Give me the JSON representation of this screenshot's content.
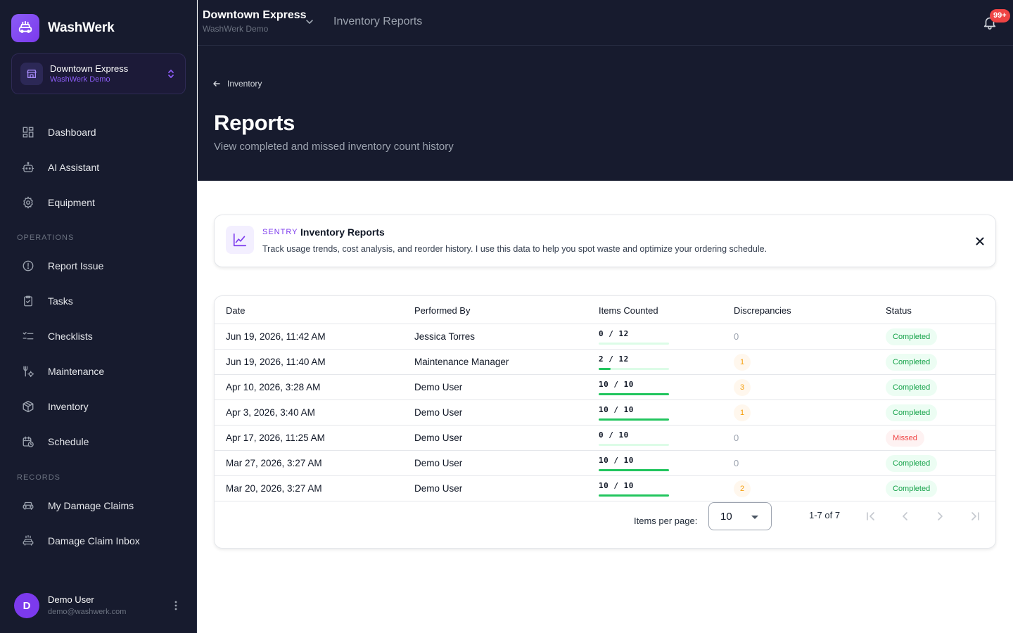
{
  "app": {
    "name": "WashWerk"
  },
  "location": {
    "name": "Downtown Express",
    "org": "WashWerk Demo"
  },
  "sidebar": {
    "main_items": [
      {
        "label": "Dashboard",
        "icon": "dashboard-icon"
      },
      {
        "label": "AI Assistant",
        "icon": "robot-icon"
      },
      {
        "label": "Equipment",
        "icon": "gear-icon"
      }
    ],
    "operations_heading": "OPERATIONS",
    "operations_items": [
      {
        "label": "Report Issue",
        "icon": "alert-circle-icon"
      },
      {
        "label": "Tasks",
        "icon": "clipboard-check-icon"
      },
      {
        "label": "Checklists",
        "icon": "checklist-icon"
      },
      {
        "label": "Maintenance",
        "icon": "wrench-icon"
      },
      {
        "label": "Inventory",
        "icon": "box-icon"
      },
      {
        "label": "Schedule",
        "icon": "calendar-clock-icon"
      }
    ],
    "records_heading": "RECORDS",
    "records_items": [
      {
        "label": "My Damage Claims",
        "icon": "car-icon"
      },
      {
        "label": "Damage Claim Inbox",
        "icon": "car-wash-icon"
      }
    ]
  },
  "user": {
    "initial": "D",
    "name": "Demo User",
    "email": "demo@washwerk.com"
  },
  "header": {
    "section_title": "Inventory Reports",
    "notification_count": "99+"
  },
  "page": {
    "back_label": "Inventory",
    "title": "Reports",
    "subtitle": "View completed and missed inventory count history"
  },
  "sentry": {
    "tag": "SENTRY",
    "title": "Inventory Reports",
    "text": "Track usage trends, cost analysis, and reorder history. I use this data to help you spot waste and optimize your ordering schedule."
  },
  "table": {
    "columns": [
      "Date",
      "Performed By",
      "Items Counted",
      "Discrepancies",
      "Status"
    ],
    "rows": [
      {
        "date": "Jun 19, 2026, 11:42 AM",
        "by": "Jessica Torres",
        "counted": "0 / 12",
        "progress": 0,
        "discrepancies": "0",
        "status": "Completed"
      },
      {
        "date": "Jun 19, 2026, 11:40 AM",
        "by": "Maintenance Manager",
        "counted": "2 / 12",
        "progress": 0.1667,
        "discrepancies": "1",
        "status": "Completed"
      },
      {
        "date": "Apr 10, 2026, 3:28 AM",
        "by": "Demo User",
        "counted": "10 / 10",
        "progress": 1,
        "discrepancies": "3",
        "status": "Completed"
      },
      {
        "date": "Apr 3, 2026, 3:40 AM",
        "by": "Demo User",
        "counted": "10 / 10",
        "progress": 1,
        "discrepancies": "1",
        "status": "Completed"
      },
      {
        "date": "Apr 17, 2026, 11:25 AM",
        "by": "Demo User",
        "counted": "0 / 10",
        "progress": 0,
        "discrepancies": "0",
        "status": "Missed"
      },
      {
        "date": "Mar 27, 2026, 3:27 AM",
        "by": "Demo User",
        "counted": "10 / 10",
        "progress": 1,
        "discrepancies": "0",
        "status": "Completed"
      },
      {
        "date": "Mar 20, 2026, 3:27 AM",
        "by": "Demo User",
        "counted": "10 / 10",
        "progress": 1,
        "discrepancies": "2",
        "status": "Completed"
      }
    ]
  },
  "pagination": {
    "items_per_page_label": "Items per page:",
    "items_per_page": "10",
    "range": "1-7 of 7"
  },
  "colors": {
    "accent": "#7c3aed",
    "sidebar_bg": "#171b2e",
    "success": "#22c55e",
    "danger": "#ef4444",
    "warning": "#f59e0b"
  }
}
